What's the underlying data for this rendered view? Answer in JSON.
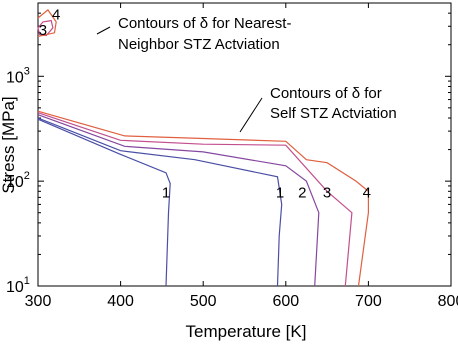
{
  "chart_data": {
    "type": "line",
    "title": "",
    "xlabel": "Temperature [K]",
    "ylabel": "Stress [MPa]",
    "xlim": [
      300,
      800
    ],
    "ylim": [
      10,
      5000
    ],
    "y_scale": "log",
    "grid": false,
    "x_ticks": [
      "300",
      "400",
      "500",
      "600",
      "700",
      "800"
    ],
    "y_ticks": [
      {
        "base": "10",
        "exp": "1",
        "value": 10
      },
      {
        "base": "10",
        "exp": "2",
        "value": 100
      },
      {
        "base": "10",
        "exp": "3",
        "value": 1000
      }
    ],
    "annotations": {
      "self_line1_prefix": "Contours of ",
      "self_delta": "δ",
      "self_line1_suffix": " for",
      "self_line2": "Self STZ Actviation",
      "neighbor_line1_prefix": "Contours of ",
      "neighbor_delta": "δ",
      "neighbor_line1_suffix": " for Nearest-",
      "neighbor_line2": "Neighbor STZ Actviation"
    },
    "series": [
      {
        "label": "1",
        "color": "#4a4fa6",
        "points": [
          [
            300,
            400
          ],
          [
            400,
            195
          ],
          [
            490,
            160
          ],
          [
            590,
            110
          ],
          [
            595,
            60
          ],
          [
            592,
            30
          ],
          [
            590,
            10
          ]
        ],
        "label_at": [
          593,
          78
        ]
      },
      {
        "label": "2",
        "color": "#8548a0",
        "points": [
          [
            300,
            430
          ],
          [
            405,
            215
          ],
          [
            500,
            190
          ],
          [
            600,
            140
          ],
          [
            625,
            100
          ],
          [
            640,
            50
          ],
          [
            635,
            10
          ]
        ],
        "label_at": [
          620,
          78
        ]
      },
      {
        "label": "3",
        "color": "#c24f8e",
        "points": [
          [
            300,
            450
          ],
          [
            400,
            245
          ],
          [
            500,
            225
          ],
          [
            600,
            220
          ],
          [
            650,
            80
          ],
          [
            680,
            50
          ],
          [
            672,
            10
          ]
        ],
        "label_at": [
          650,
          78
        ]
      },
      {
        "label": "4",
        "color": "#e0603f",
        "points": [
          [
            300,
            465
          ],
          [
            405,
            270
          ],
          [
            500,
            255
          ],
          [
            600,
            240
          ],
          [
            625,
            160
          ],
          [
            650,
            150
          ],
          [
            685,
            100
          ],
          [
            700,
            80
          ],
          [
            700,
            50
          ],
          [
            688,
            10
          ]
        ],
        "label_at": [
          698,
          78
        ]
      },
      {
        "label": "1",
        "color": "#4a4fa6",
        "points": [
          [
            300,
            390
          ],
          [
            400,
            180
          ],
          [
            455,
            120
          ],
          [
            460,
            95
          ],
          [
            458,
            50
          ],
          [
            455,
            10
          ]
        ],
        "label_at": [
          455,
          78
        ]
      },
      {
        "label": "3",
        "color": "#c24f8e",
        "points": [
          [
            300,
            2900
          ],
          [
            306,
            3300
          ],
          [
            316,
            3400
          ],
          [
            318,
            2900
          ],
          [
            310,
            2450
          ],
          [
            302,
            2500
          ],
          [
            300,
            2900
          ]
        ],
        "label_at": [
          306,
          2750
        ]
      },
      {
        "label": "4",
        "color": "#e0603f",
        "points": [
          [
            300,
            3600
          ],
          [
            312,
            4300
          ],
          [
            322,
            3300
          ],
          [
            320,
            2600
          ],
          [
            300,
            2400
          ]
        ],
        "label_at": [
          322,
          3900
        ]
      }
    ]
  }
}
